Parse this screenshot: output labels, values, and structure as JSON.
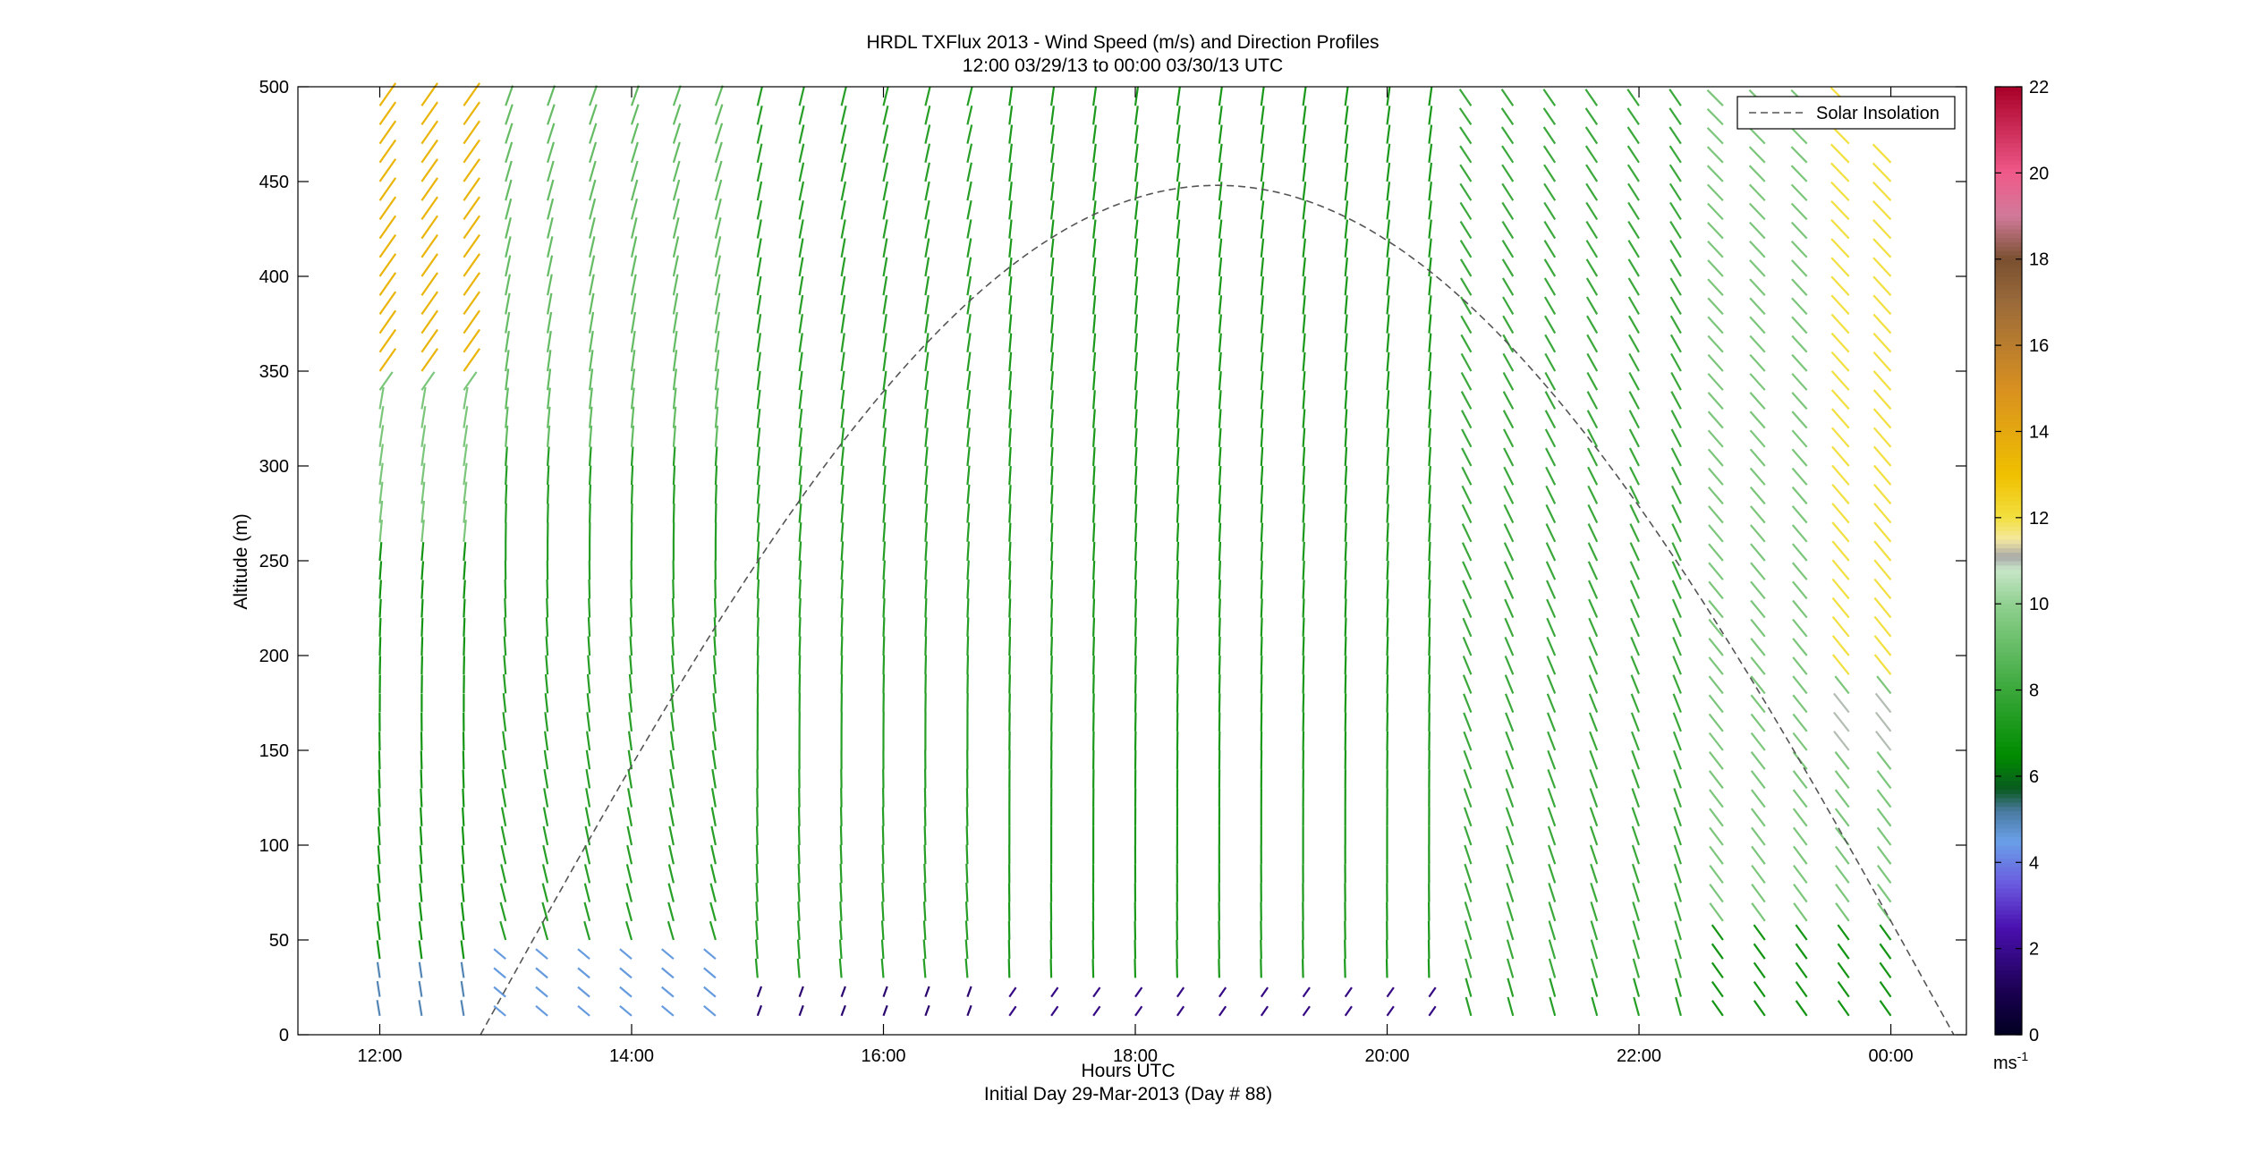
{
  "chart_data": {
    "type": "quiver",
    "title_line1": "HRDL TXFlux 2013 - Wind Speed (m/s) and Direction Profiles",
    "title_line2": "12:00 03/29/13 to 00:00 03/30/13  UTC",
    "xlabel": "Hours UTC",
    "xlabel_line2": "Initial Day 29-Mar-2013 (Day # 88)",
    "ylabel": "Altitude (m)",
    "xlim_hours": [
      11.35,
      24.6
    ],
    "ylim": [
      0,
      500
    ],
    "x_ticks": [
      {
        "hour": 12,
        "label": "12:00"
      },
      {
        "hour": 14,
        "label": "14:00"
      },
      {
        "hour": 16,
        "label": "16:00"
      },
      {
        "hour": 18,
        "label": "18:00"
      },
      {
        "hour": 20,
        "label": "20:00"
      },
      {
        "hour": 22,
        "label": "22:00"
      },
      {
        "hour": 24,
        "label": "00:00"
      }
    ],
    "y_ticks": [
      0,
      50,
      100,
      150,
      200,
      250,
      300,
      350,
      400,
      450,
      500
    ],
    "legend": {
      "label": "Solar Insolation",
      "placement": "top-right",
      "line_style": "dashed",
      "color": "#555555"
    },
    "colorbar": {
      "min": 0,
      "max": 22,
      "units": "ms-1",
      "tick_values": [
        0,
        2,
        4,
        6,
        8,
        10,
        12,
        14,
        16,
        18,
        20,
        22
      ],
      "stops": [
        {
          "v": 0,
          "c": "#000020"
        },
        {
          "v": 1,
          "c": "#1a0050"
        },
        {
          "v": 2.5,
          "c": "#4a10b0"
        },
        {
          "v": 3.5,
          "c": "#6a5adf"
        },
        {
          "v": 4.5,
          "c": "#6aa0e8"
        },
        {
          "v": 5.2,
          "c": "#4a7aa0"
        },
        {
          "v": 5.7,
          "c": "#0a5a20"
        },
        {
          "v": 6.5,
          "c": "#008c00"
        },
        {
          "v": 8,
          "c": "#3aa83a"
        },
        {
          "v": 10,
          "c": "#90d090"
        },
        {
          "v": 10.8,
          "c": "#c8e6c8"
        },
        {
          "v": 11.1,
          "c": "#a8a8a8"
        },
        {
          "v": 11.5,
          "c": "#f4e8a0"
        },
        {
          "v": 12,
          "c": "#f2e040"
        },
        {
          "v": 13,
          "c": "#f0c000"
        },
        {
          "v": 15,
          "c": "#d89020"
        },
        {
          "v": 17,
          "c": "#9a6a3a"
        },
        {
          "v": 18,
          "c": "#7a5030"
        },
        {
          "v": 19,
          "c": "#d07a9a"
        },
        {
          "v": 20,
          "c": "#f05a8a"
        },
        {
          "v": 22,
          "c": "#a80028"
        }
      ]
    },
    "solar_insolation_curve": {
      "description": "normalized solar insolation (peak ~450 m on axis scale)",
      "start_hour": 12.8,
      "peak_hour": 18.65,
      "end_hour": 24.5,
      "peak_altitude": 448
    },
    "time_hours": [
      12.0,
      12.333,
      12.667,
      13.0,
      13.333,
      13.667,
      14.0,
      14.333,
      14.667,
      15.0,
      15.333,
      15.667,
      16.0,
      16.333,
      16.667,
      17.0,
      17.333,
      17.667,
      18.0,
      18.333,
      18.667,
      19.0,
      19.333,
      19.667,
      20.0,
      20.333,
      20.667,
      21.0,
      21.333,
      21.667,
      22.0,
      22.333,
      22.667,
      23.0,
      23.333,
      23.667,
      24.0
    ],
    "altitudes_m": [
      10,
      20,
      30,
      40,
      50,
      60,
      70,
      80,
      90,
      100,
      110,
      120,
      130,
      140,
      150,
      160,
      170,
      180,
      190,
      200,
      210,
      220,
      230,
      240,
      250,
      260,
      270,
      280,
      290,
      300,
      310,
      320,
      330,
      340,
      350,
      360,
      370,
      380,
      390,
      400,
      410,
      420,
      430,
      440,
      450,
      460,
      470,
      480,
      490
    ],
    "wind_vectors_note": "approximate: lower levels blow toward NW-ish (shown as NW-SE lines), upper morning levels show stronger SW winds (12-14 m/s), midday ~6-8 m/s near-northward, evening near-surface stronger green"
  }
}
